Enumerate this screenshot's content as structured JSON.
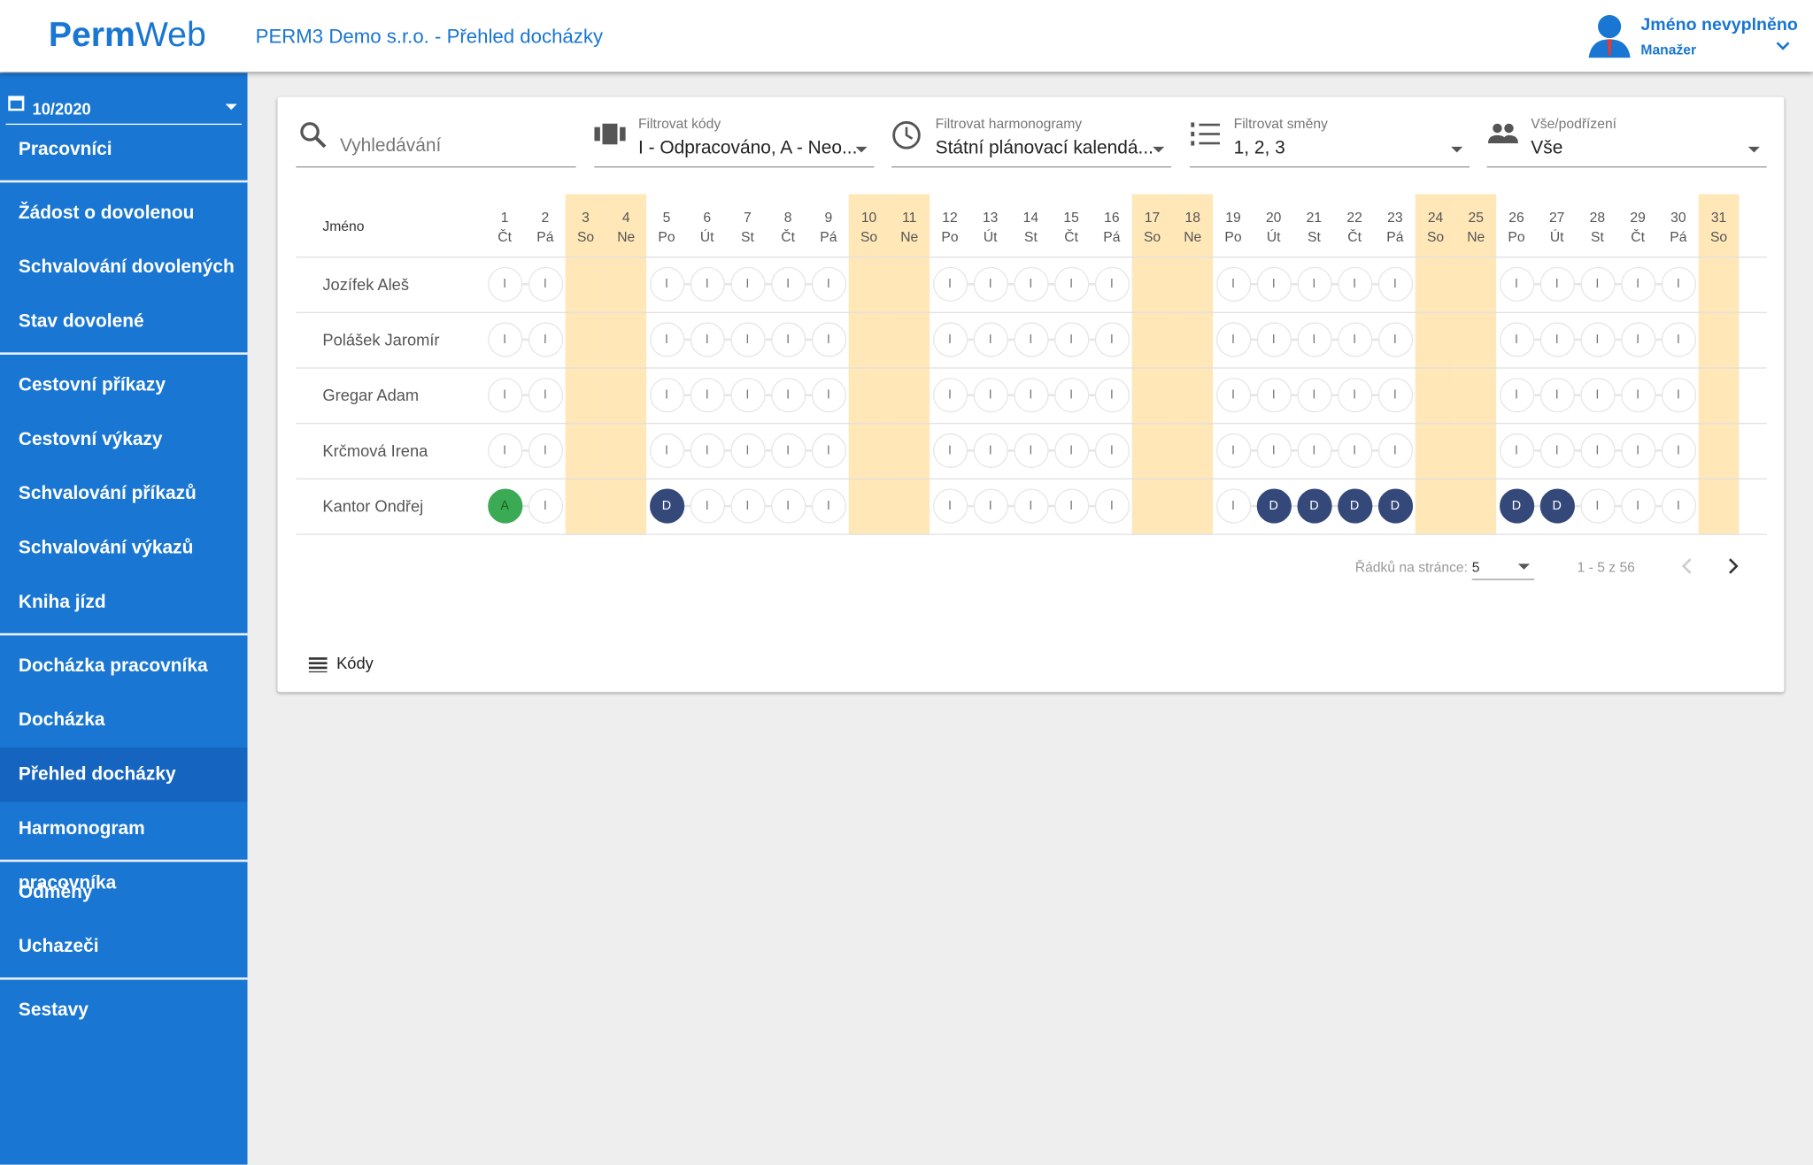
{
  "header": {
    "logo_bold": "Perm",
    "logo_light": "Web",
    "title": "PERM3 Demo s.r.o. - Přehled docházky",
    "user": "Jméno nevyplněno",
    "role": "Manažer"
  },
  "sidebar": {
    "period": "10/2020",
    "groups": [
      [
        "Pracovníci"
      ],
      [
        "Žádost o dovolenou",
        "Schvalování dovolených",
        "Stav dovolené"
      ],
      [
        "Cestovní příkazy",
        "Cestovní výkazy",
        "Schvalování příkazů",
        "Schvalování výkazů",
        "Kniha jízd"
      ],
      [
        "Docházka pracovníka",
        "Docházka",
        "Přehled docházky",
        "Harmonogram pracovníka"
      ],
      [
        "Odměny",
        "Uchazeči"
      ],
      [
        "Sestavy"
      ]
    ],
    "active": "Přehled docházky"
  },
  "filters": {
    "search": "Vyhledávání",
    "items": [
      {
        "label": "Filtrovat kódy",
        "value": "I - Odpracováno, A - Neo..."
      },
      {
        "label": "Filtrovat harmonogramy",
        "value": "Státní plánovací kalendá..."
      },
      {
        "label": "Filtrovat směny",
        "value": "1, 2, 3"
      },
      {
        "label": "Vše/podřízení",
        "value": "Vše"
      }
    ]
  },
  "table": {
    "name_header": "Jméno",
    "weekend_color": "#ffe7b8",
    "code_colors": {
      "A": "#3aaa55",
      "D": "#34497a"
    },
    "days": [
      {
        "day": "1",
        "weekday": "Čt",
        "weekend": false
      },
      {
        "day": "2",
        "weekday": "Pá",
        "weekend": false
      },
      {
        "day": "3",
        "weekday": "So",
        "weekend": true
      },
      {
        "day": "4",
        "weekday": "Ne",
        "weekend": true
      },
      {
        "day": "5",
        "weekday": "Po",
        "weekend": false
      },
      {
        "day": "6",
        "weekday": "Út",
        "weekend": false
      },
      {
        "day": "7",
        "weekday": "St",
        "weekend": false
      },
      {
        "day": "8",
        "weekday": "Čt",
        "weekend": false
      },
      {
        "day": "9",
        "weekday": "Pá",
        "weekend": false
      },
      {
        "day": "10",
        "weekday": "So",
        "weekend": true
      },
      {
        "day": "11",
        "weekday": "Ne",
        "weekend": true
      },
      {
        "day": "12",
        "weekday": "Po",
        "weekend": false
      },
      {
        "day": "13",
        "weekday": "Út",
        "weekend": false
      },
      {
        "day": "14",
        "weekday": "St",
        "weekend": false
      },
      {
        "day": "15",
        "weekday": "Čt",
        "weekend": false
      },
      {
        "day": "16",
        "weekday": "Pá",
        "weekend": false
      },
      {
        "day": "17",
        "weekday": "So",
        "weekend": true
      },
      {
        "day": "18",
        "weekday": "Ne",
        "weekend": true
      },
      {
        "day": "19",
        "weekday": "Po",
        "weekend": false
      },
      {
        "day": "20",
        "weekday": "Út",
        "weekend": false
      },
      {
        "day": "21",
        "weekday": "St",
        "weekend": false
      },
      {
        "day": "22",
        "weekday": "Čt",
        "weekend": false
      },
      {
        "day": "23",
        "weekday": "Pá",
        "weekend": false
      },
      {
        "day": "24",
        "weekday": "So",
        "weekend": true
      },
      {
        "day": "25",
        "weekday": "Ne",
        "weekend": true
      },
      {
        "day": "26",
        "weekday": "Po",
        "weekend": false
      },
      {
        "day": "27",
        "weekday": "Út",
        "weekend": false
      },
      {
        "day": "28",
        "weekday": "St",
        "weekend": false
      },
      {
        "day": "29",
        "weekday": "Čt",
        "weekend": false
      },
      {
        "day": "30",
        "weekday": "Pá",
        "weekend": false
      },
      {
        "day": "31",
        "weekday": "So",
        "weekend": true
      }
    ],
    "rows": [
      {
        "name": "Jozífek Aleš",
        "cells": [
          "I",
          "I",
          null,
          null,
          "I",
          "I",
          "I",
          "I",
          "I",
          null,
          null,
          "I",
          "I",
          "I",
          "I",
          "I",
          null,
          null,
          "I",
          "I",
          "I",
          "I",
          "I",
          null,
          null,
          "I",
          "I",
          "I",
          "I",
          "I",
          null
        ]
      },
      {
        "name": "Polášek Jaromír",
        "cells": [
          "I",
          "I",
          null,
          null,
          "I",
          "I",
          "I",
          "I",
          "I",
          null,
          null,
          "I",
          "I",
          "I",
          "I",
          "I",
          null,
          null,
          "I",
          "I",
          "I",
          "I",
          "I",
          null,
          null,
          "I",
          "I",
          "I",
          "I",
          "I",
          null
        ]
      },
      {
        "name": "Gregar Adam",
        "cells": [
          "I",
          "I",
          null,
          null,
          "I",
          "I",
          "I",
          "I",
          "I",
          null,
          null,
          "I",
          "I",
          "I",
          "I",
          "I",
          null,
          null,
          "I",
          "I",
          "I",
          "I",
          "I",
          null,
          null,
          "I",
          "I",
          "I",
          "I",
          "I",
          null
        ]
      },
      {
        "name": "Krčmová Irena",
        "cells": [
          "I",
          "I",
          null,
          null,
          "I",
          "I",
          "I",
          "I",
          "I",
          null,
          null,
          "I",
          "I",
          "I",
          "I",
          "I",
          null,
          null,
          "I",
          "I",
          "I",
          "I",
          "I",
          null,
          null,
          "I",
          "I",
          "I",
          "I",
          "I",
          null
        ]
      },
      {
        "name": "Kantor Ondřej",
        "cells": [
          "A",
          "I",
          null,
          null,
          "D",
          "I",
          "I",
          "I",
          "I",
          null,
          null,
          "I",
          "I",
          "I",
          "I",
          "I",
          null,
          null,
          "I",
          "D",
          "D",
          "D",
          "D",
          null,
          null,
          "D",
          "D",
          "I",
          "I",
          "I",
          null
        ]
      }
    ]
  },
  "pagination": {
    "label": "Řádků na stránce:",
    "per_page": "5",
    "range": "1 - 5 z 56"
  },
  "footer": {
    "codes": "Kódy"
  }
}
